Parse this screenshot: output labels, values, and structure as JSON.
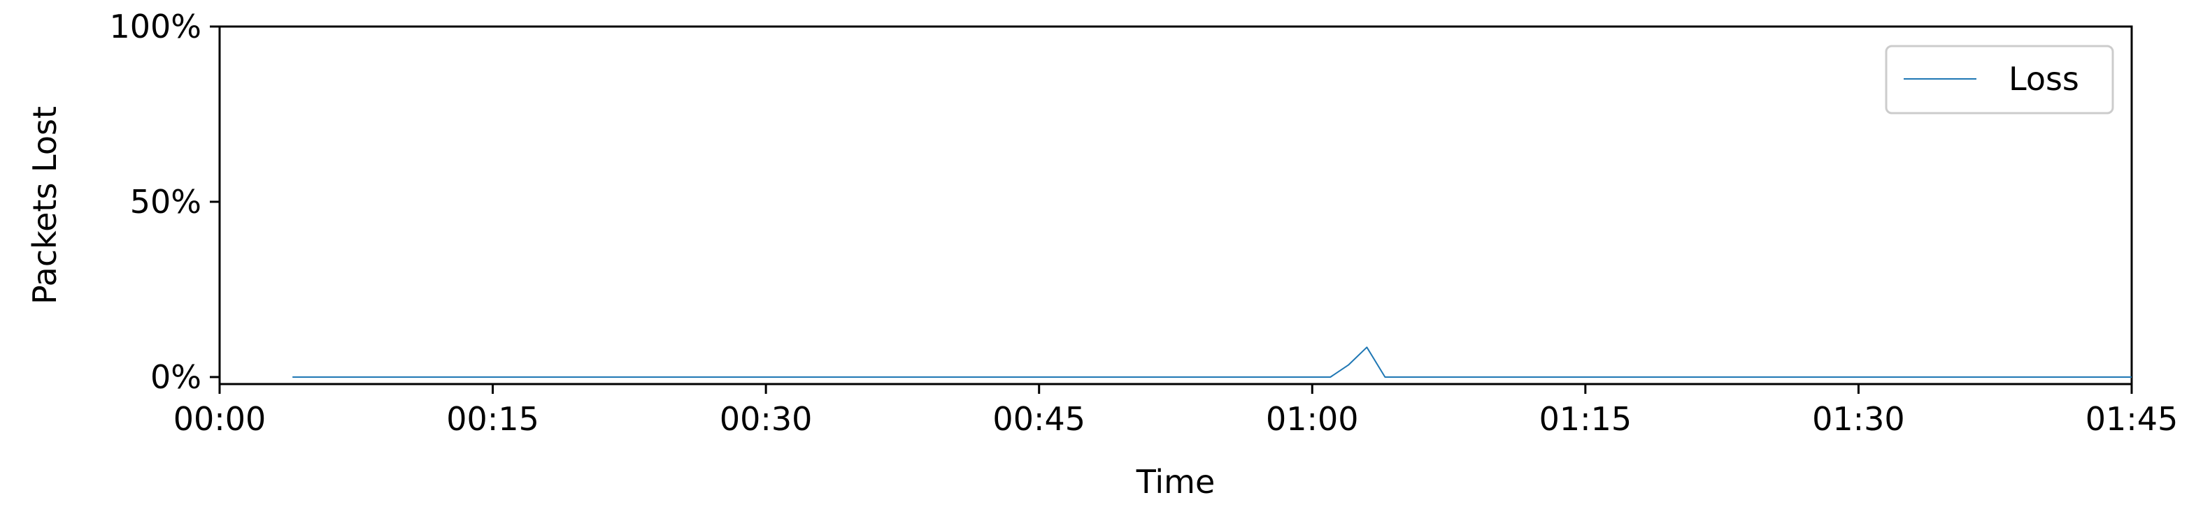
{
  "chart_data": {
    "type": "line",
    "title": "",
    "xlabel": "Time",
    "ylabel": "Packets Lost",
    "x_unit": "minutes",
    "xlim": [
      0,
      105
    ],
    "ylim": [
      -2,
      100
    ],
    "xticks": [
      0,
      15,
      30,
      45,
      60,
      75,
      90,
      105
    ],
    "xtick_labels": [
      "00:00",
      "00:15",
      "00:30",
      "00:45",
      "01:00",
      "01:15",
      "01:30",
      "01:45"
    ],
    "yticks": [
      0,
      50,
      100
    ],
    "ytick_labels": [
      "0%",
      "50%",
      "100%"
    ],
    "grid": false,
    "legend_position": "upper-right",
    "series": [
      {
        "name": "Loss",
        "color": "#1f77b4",
        "x": [
          4,
          61,
          62,
          63,
          64,
          105
        ],
        "y": [
          0,
          0,
          3.5,
          8.5,
          0,
          0
        ]
      }
    ]
  }
}
